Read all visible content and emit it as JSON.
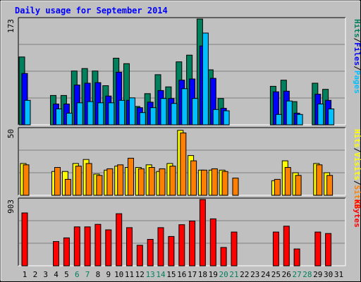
{
  "title": "Daily usage for September 2014",
  "colors": {
    "background": "#c0c0c0",
    "title": "#0000ff",
    "plot_bg": "#c0c0c0",
    "grid": "#808080",
    "hits": "#00805c",
    "files": "#0000ff",
    "pages": "#00c0ff",
    "visits": "#ffff00",
    "sites": "#ff8000",
    "kbytes": "#ff0000",
    "weekend_label": "#00805c",
    "weekday_label": "#000000"
  },
  "chart_data": [
    {
      "type": "bar",
      "name": "top-panel",
      "scale_label": "173",
      "ymax": 173,
      "y_legend": [
        {
          "text": "Pages",
          "color_key": "pages"
        },
        {
          "text": "Files",
          "color_key": "files"
        },
        {
          "text": "Hits",
          "color_key": "hits"
        }
      ],
      "series": [
        {
          "name": "Hits",
          "color_key": "hits",
          "values": [
            111,
            0,
            0,
            48,
            48,
            88,
            92,
            88,
            64,
            109,
            100,
            30,
            51,
            82,
            62,
            103,
            114,
            173,
            90,
            43,
            0,
            0,
            0,
            0,
            63,
            73,
            38,
            0,
            68,
            58,
            0
          ]
        },
        {
          "name": "Files",
          "color_key": "files",
          "values": [
            84,
            0,
            0,
            34,
            34,
            65,
            68,
            69,
            47,
            86,
            40,
            28,
            37,
            56,
            43,
            73,
            75,
            129,
            76,
            27,
            0,
            0,
            0,
            0,
            54,
            55,
            19,
            0,
            50,
            40,
            0
          ]
        },
        {
          "name": "Pages",
          "color_key": "pages",
          "values": [
            40,
            0,
            0,
            26,
            19,
            36,
            38,
            36,
            36,
            40,
            44,
            20,
            28,
            43,
            35,
            59,
            43,
            150,
            25,
            23,
            0,
            0,
            0,
            0,
            17,
            39,
            17,
            0,
            34,
            26,
            0
          ]
        }
      ]
    },
    {
      "type": "bar",
      "name": "middle-panel",
      "scale_label": "50",
      "ymax": 50,
      "y_legend": [
        {
          "text": "Sites",
          "color_key": "sites"
        },
        {
          "text": "Visits",
          "color_key": "visits"
        },
        {
          "text": "Hits",
          "color_key": "visits"
        }
      ],
      "series": [
        {
          "name": "Visits",
          "color_key": "visits",
          "values": [
            24,
            0,
            0,
            18,
            18,
            24,
            27,
            16,
            19,
            22,
            21,
            21,
            23,
            18,
            24,
            49,
            30,
            19,
            19,
            19,
            0,
            0,
            0,
            0,
            11,
            26,
            17,
            0,
            24,
            17,
            0
          ]
        },
        {
          "name": "Sites",
          "color_key": "sites",
          "values": [
            23,
            0,
            0,
            21,
            12,
            22,
            24,
            15,
            20,
            23,
            28,
            20,
            21,
            20,
            22,
            47,
            26,
            19,
            20,
            18,
            13,
            0,
            0,
            0,
            12,
            21,
            15,
            0,
            23,
            15,
            0
          ]
        }
      ]
    },
    {
      "type": "bar",
      "name": "bottom-panel",
      "scale_label": "903",
      "ymax": 903,
      "y_legend": [
        {
          "text": "KBytes",
          "color_key": "kbytes"
        }
      ],
      "series": [
        {
          "name": "KBytes",
          "color_key": "kbytes",
          "values": [
            720,
            0,
            0,
            330,
            380,
            530,
            530,
            565,
            490,
            710,
            520,
            280,
            360,
            520,
            400,
            560,
            610,
            903,
            640,
            250,
            460,
            0,
            0,
            0,
            460,
            540,
            230,
            0,
            460,
            440,
            0
          ]
        }
      ]
    }
  ],
  "x_labels": [
    {
      "text": "1",
      "weekend": false
    },
    {
      "text": "2",
      "weekend": false
    },
    {
      "text": "3",
      "weekend": false
    },
    {
      "text": "4",
      "weekend": false
    },
    {
      "text": "5",
      "weekend": false
    },
    {
      "text": "6",
      "weekend": true
    },
    {
      "text": "7",
      "weekend": true
    },
    {
      "text": "8",
      "weekend": false
    },
    {
      "text": "9",
      "weekend": false
    },
    {
      "text": "10",
      "weekend": false
    },
    {
      "text": "11",
      "weekend": false
    },
    {
      "text": "12",
      "weekend": false
    },
    {
      "text": "13",
      "weekend": true
    },
    {
      "text": "14",
      "weekend": true
    },
    {
      "text": "15",
      "weekend": false
    },
    {
      "text": "16",
      "weekend": false
    },
    {
      "text": "17",
      "weekend": false
    },
    {
      "text": "18",
      "weekend": false
    },
    {
      "text": "19",
      "weekend": false
    },
    {
      "text": "20",
      "weekend": true
    },
    {
      "text": "21",
      "weekend": true
    },
    {
      "text": "22",
      "weekend": false
    },
    {
      "text": "23",
      "weekend": false
    },
    {
      "text": "24",
      "weekend": false
    },
    {
      "text": "25",
      "weekend": false
    },
    {
      "text": "26",
      "weekend": false
    },
    {
      "text": "27",
      "weekend": true
    },
    {
      "text": "28",
      "weekend": true
    },
    {
      "text": "29",
      "weekend": false
    },
    {
      "text": "30",
      "weekend": false
    },
    {
      "text": "31",
      "weekend": false
    }
  ]
}
